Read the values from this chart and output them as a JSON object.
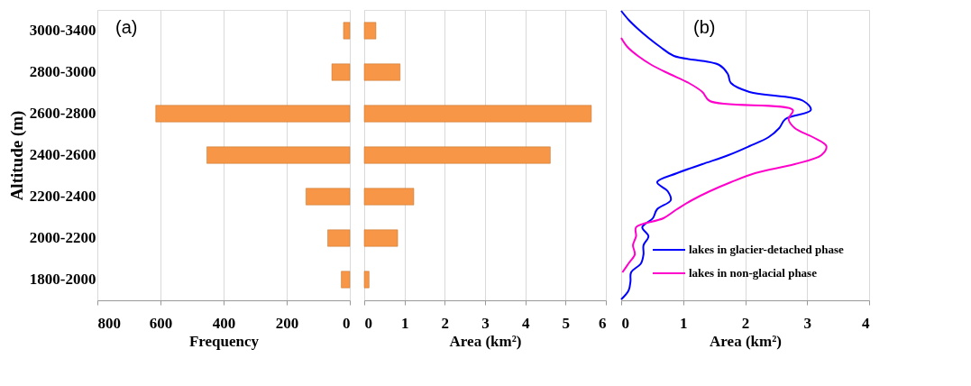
{
  "chart_data": [
    {
      "type": "bar",
      "orientation": "horizontal",
      "categories": [
        "3000-3400",
        "2800-3000",
        "2600-2800",
        "2400-2600",
        "2200-2400",
        "2000-2200",
        "1800-2000"
      ],
      "values": [
        20,
        57,
        615,
        453,
        139,
        70,
        27
      ],
      "color": "#f79646",
      "xlim": [
        800,
        0
      ],
      "xticks": [
        800,
        600,
        400,
        200,
        0
      ],
      "xlabel": "Frequency",
      "ylabel": "Altitude (m)",
      "grid": "x",
      "annotations": [
        "(a)"
      ]
    },
    {
      "type": "bar",
      "orientation": "horizontal",
      "categories": [
        null,
        null,
        null,
        null,
        null,
        null,
        null
      ],
      "values": [
        0.29,
        0.89,
        5.64,
        4.62,
        1.23,
        0.83,
        0.12
      ],
      "color": "#f79646",
      "xlim": [
        0,
        6
      ],
      "xticks": [
        0,
        1,
        2,
        3,
        4,
        5,
        6
      ],
      "xlabel": "Area (km²)",
      "grid": "x",
      "tick_labels": "x"
    },
    {
      "type": "line",
      "orientation": "horizontal",
      "categories": [
        null,
        null,
        null,
        null,
        null,
        null,
        null,
        null,
        null,
        null,
        null,
        null,
        null,
        null,
        null,
        null,
        null,
        null,
        null,
        null,
        null,
        null,
        null,
        null,
        null,
        null,
        null,
        null,
        null,
        null,
        null,
        null,
        null
      ],
      "xlim": [
        0,
        4
      ],
      "xticks": [
        0,
        1,
        2,
        3,
        4
      ],
      "xlabel": "Area (km²)",
      "grid": "x",
      "tick_labels": "x",
      "legend": "bottom right",
      "annotations": [
        "(b)"
      ],
      "series": [
        {
          "name": "lakes in glacier-detached phase",
          "color": "#0000ff",
          "values": [
            0,
            0.12,
            0.27,
            0.44,
            0.63,
            0.85,
            1.58,
            1.72,
            1.77,
            2.07,
            2.94,
            3.06,
            2.65,
            2.55,
            2.38,
            2.07,
            1.73,
            1.31,
            0.9,
            0.58,
            0.75,
            0.8,
            0.58,
            0.51,
            0.34,
            0.44,
            0.36,
            0.36,
            0.32,
            0.16,
            0.15,
            0.12,
            0
          ]
        },
        {
          "name": "lakes in non-glacial phase",
          "color": "#ff00cc",
          "values": [
            null,
            null,
            null,
            0,
            0.1,
            0.27,
            0.49,
            0.78,
            1.09,
            1.31,
            1.43,
            2.77,
            2.7,
            2.8,
            3.09,
            3.31,
            3.23,
            2.8,
            2.16,
            1.77,
            1.43,
            1.14,
            0.9,
            0.68,
            0.24,
            0.24,
            0.19,
            0.22,
            0.12,
            0.02,
            null,
            null,
            null
          ]
        }
      ]
    }
  ]
}
